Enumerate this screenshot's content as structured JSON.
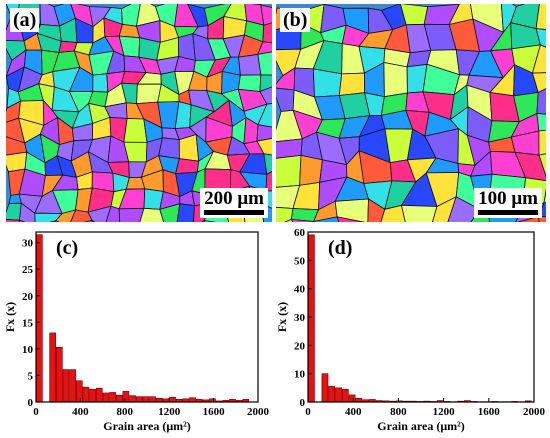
{
  "panels": [
    {
      "id": "a",
      "label": "(a)",
      "scale_text": "200 μm"
    },
    {
      "id": "b",
      "label": "(b)",
      "scale_text": "100 μm"
    }
  ],
  "chart_data": [
    {
      "panel_label": "(c)",
      "type": "bar",
      "xlabel": "Grain area (μm²)",
      "ylabel": "Fx (x)",
      "xlim": [
        0,
        2000
      ],
      "ylim": [
        0,
        32
      ],
      "xticks": [
        0,
        400,
        800,
        1200,
        1600,
        2000
      ],
      "yticks": [
        0,
        5,
        10,
        15,
        20,
        25,
        30
      ],
      "bin_width": 60,
      "bar_color": "#e81010",
      "x": [
        30,
        90,
        150,
        210,
        270,
        330,
        390,
        450,
        510,
        570,
        630,
        690,
        750,
        810,
        870,
        930,
        990,
        1050,
        1110,
        1170,
        1230,
        1290,
        1350,
        1410,
        1470,
        1530,
        1590,
        1650,
        1710,
        1770,
        1830,
        1890
      ],
      "values": [
        31.5,
        0,
        13.0,
        10.3,
        6.1,
        6.1,
        4.0,
        2.8,
        2.4,
        2.6,
        1.7,
        1.8,
        1.3,
        2.0,
        1.2,
        1.0,
        1.0,
        1.0,
        0.7,
        0.6,
        0.9,
        0.5,
        0.6,
        0.8,
        0.5,
        0.4,
        0.6,
        0.2,
        0.3,
        0.5,
        0.3,
        0.5
      ]
    },
    {
      "panel_label": "(d)",
      "type": "bar",
      "xlabel": "Grain area (μm²)",
      "ylabel": "Fx (x)",
      "xlim": [
        0,
        2000
      ],
      "ylim": [
        0,
        60
      ],
      "xticks": [
        0,
        400,
        800,
        1200,
        1600,
        2000
      ],
      "yticks": [
        0,
        10,
        20,
        30,
        40,
        50,
        60
      ],
      "bin_width": 60,
      "bar_color": "#e81010",
      "x": [
        30,
        90,
        150,
        210,
        270,
        330,
        390,
        450,
        510,
        570,
        630,
        690,
        750,
        810,
        870,
        930,
        990,
        1050,
        1110,
        1170,
        1230,
        1290,
        1350,
        1410,
        1470,
        1530,
        1590,
        1650,
        1710,
        1770,
        1830,
        1890,
        1950
      ],
      "values": [
        59,
        0,
        10,
        5.5,
        5.0,
        4.5,
        2.5,
        1.3,
        0.8,
        0.9,
        0.5,
        0.4,
        0.3,
        0.4,
        0.3,
        0.3,
        0.2,
        0.3,
        0.2,
        0.5,
        0.2,
        0.1,
        0.3,
        0.5,
        0.2,
        0.1,
        0.1,
        0.2,
        0.1,
        0.1,
        0.2,
        0.1,
        0.4
      ]
    }
  ]
}
